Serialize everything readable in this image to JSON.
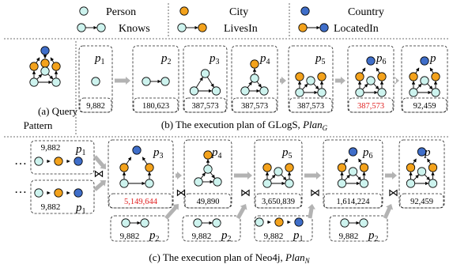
{
  "colors": {
    "person": "#cdf3ee",
    "city": "#f3a21c",
    "country": "#3f6ec9",
    "highlight": "#e02020",
    "arrow": "#b3b3b3"
  },
  "legend": {
    "person": "Person",
    "knows": "Knows",
    "city": "City",
    "lives_in": "LivesIn",
    "country": "Country",
    "located_in": "LocatedIn"
  },
  "query": {
    "caption_line1": "(a) Query",
    "caption_line2": "Pattern"
  },
  "glogs": {
    "caption": "(b) The execution plan of GLogS,",
    "plan_symbol": "Plan",
    "plan_sub": "G",
    "steps": [
      {
        "label": "p",
        "sub": "1",
        "count": "9,882"
      },
      {
        "label": "p",
        "sub": "2",
        "count": "180,623"
      },
      {
        "label": "p",
        "sub": "3",
        "count": "387,573"
      },
      {
        "label": "p",
        "sub": "4",
        "count": "387,573"
      },
      {
        "label": "p",
        "sub": "5",
        "count": "387,573"
      },
      {
        "label": "p",
        "sub": "6",
        "count": "387,573"
      },
      {
        "label": "p",
        "sub": "",
        "count": "92,459"
      }
    ]
  },
  "neo4j": {
    "caption": "(c) The execution plan of Neo4j,",
    "plan_symbol": "Plan",
    "plan_sub": "N",
    "ellipsis": "…",
    "join": "⋈",
    "inputs": [
      {
        "label": "p",
        "sub": "1",
        "count": "9,882"
      },
      {
        "label": "p",
        "sub": "1",
        "count": "9,882"
      }
    ],
    "steps": [
      {
        "label": "p",
        "sub": "3",
        "count": "5,149,644"
      },
      {
        "label": "p",
        "sub": "4",
        "count": "49,890"
      },
      {
        "label": "p",
        "sub": "5",
        "count": "3,650,839"
      },
      {
        "label": "p",
        "sub": "6",
        "count": "1,614,224"
      },
      {
        "label": "p",
        "sub": "",
        "count": "92,459"
      }
    ],
    "extras": [
      {
        "label": "p",
        "sub": "2",
        "count": "9,882"
      },
      {
        "label": "p",
        "sub": "2",
        "count": "9,882"
      },
      {
        "label": "p",
        "sub": "1",
        "count": "9,882"
      },
      {
        "label": "p",
        "sub": "2",
        "count": "9,882"
      }
    ]
  }
}
